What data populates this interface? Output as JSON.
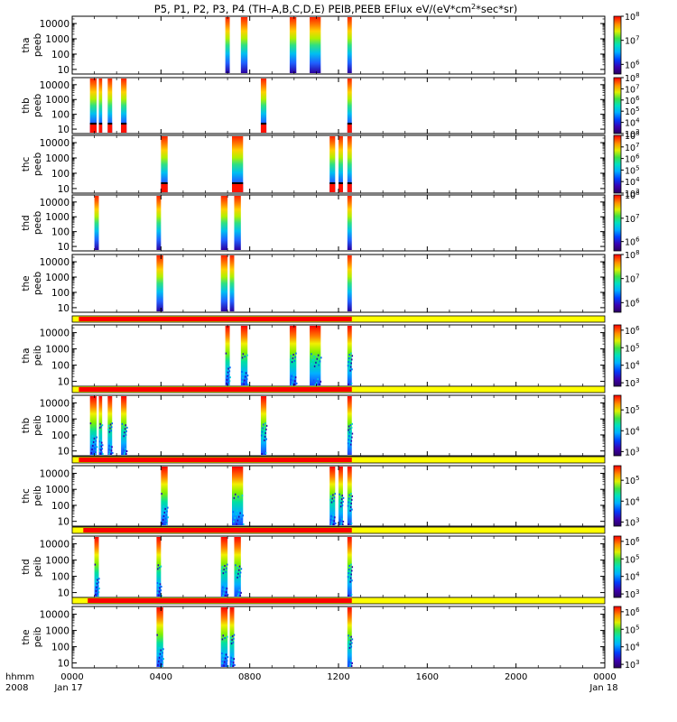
{
  "chart_data": {
    "type": "heatmap",
    "title": "P5, P1, P2, P3, P4 (TH–A,B,C,D,E) PEIB,PEEB EFlux eV/(eV*cm²*sec*sr)",
    "title_parts": {
      "prefix": "P5, P1, P2, P3, P4 (TH–A,B,C,D,E) PEIB,PEEB EFlux eV/(eV*cm",
      "sup": "2",
      "suffix": "*sec*sr)"
    },
    "x_axis": {
      "unit_label": "hhmm",
      "year_label": "2008",
      "ticks": [
        "0000",
        "0400",
        "0800",
        "1200",
        "1600",
        "2000",
        "0000"
      ],
      "tick_hours": [
        0,
        4,
        8,
        12,
        16,
        20,
        24
      ],
      "start_date": "Jan 17",
      "end_date": "Jan 18",
      "xlim_hours": [
        0,
        24
      ]
    },
    "y_axis": {
      "scale": "log",
      "ticks": [
        "10",
        "100",
        "1000",
        "10000"
      ],
      "tick_values": [
        10,
        100,
        1000,
        10000
      ],
      "ylim": [
        5,
        30000
      ]
    },
    "colormap": "rainbow (purple-blue-cyan-green-yellow-red)",
    "panels": [
      {
        "ylabel_top": "tha",
        "ylabel_bottom": "peeb",
        "cbar_ticks": [
          6,
          7,
          8
        ],
        "cbar_range": [
          5.6,
          8
        ],
        "intervals": [
          [
            6.9,
            7.1
          ],
          [
            7.6,
            7.9
          ],
          [
            9.8,
            10.1
          ],
          [
            10.7,
            11.2
          ],
          [
            12.4,
            12.6
          ]
        ],
        "bottom_red": false,
        "status_bar": null
      },
      {
        "ylabel_top": "thb",
        "ylabel_bottom": "peeb",
        "cbar_ticks": [
          3,
          4,
          5,
          6,
          7,
          8
        ],
        "cbar_range": [
          3,
          8
        ],
        "intervals": [
          [
            0.8,
            1.1
          ],
          [
            1.2,
            1.35
          ],
          [
            1.6,
            1.8
          ],
          [
            2.2,
            2.45
          ],
          [
            8.5,
            8.75
          ],
          [
            12.4,
            12.6
          ]
        ],
        "bottom_red": true,
        "status_bar": null
      },
      {
        "ylabel_top": "thc",
        "ylabel_bottom": "peeb",
        "cbar_ticks": [
          3,
          4,
          5,
          6,
          7,
          8
        ],
        "cbar_range": [
          3,
          8
        ],
        "intervals": [
          [
            4.0,
            4.3
          ],
          [
            7.2,
            7.7
          ],
          [
            11.6,
            11.85
          ],
          [
            12.0,
            12.2
          ],
          [
            12.4,
            12.6
          ]
        ],
        "bottom_red": true,
        "status_bar": null
      },
      {
        "ylabel_top": "thd",
        "ylabel_bottom": "peeb",
        "cbar_ticks": [
          6,
          7,
          8
        ],
        "cbar_range": [
          5.6,
          8
        ],
        "intervals": [
          [
            1.0,
            1.2
          ],
          [
            3.8,
            4.0
          ],
          [
            6.7,
            7.0
          ],
          [
            7.3,
            7.6
          ],
          [
            12.4,
            12.6
          ]
        ],
        "bottom_red": false,
        "status_bar": null
      },
      {
        "ylabel_top": "the",
        "ylabel_bottom": "peeb",
        "cbar_ticks": [
          6,
          7,
          8
        ],
        "cbar_range": [
          5.6,
          8
        ],
        "intervals": [
          [
            3.8,
            4.1
          ],
          [
            6.7,
            7.0
          ],
          [
            7.1,
            7.3
          ],
          [
            12.4,
            12.6
          ]
        ],
        "bottom_red": false,
        "status_bar": null
      },
      {
        "ylabel_top": "tha",
        "ylabel_bottom": "peib",
        "cbar_ticks": [
          3,
          4,
          5,
          6
        ],
        "cbar_range": [
          2.8,
          6.3
        ],
        "intervals": [
          [
            6.9,
            7.1
          ],
          [
            7.6,
            7.9
          ],
          [
            9.8,
            10.1
          ],
          [
            10.7,
            11.2
          ],
          [
            12.4,
            12.6
          ]
        ],
        "bottom_red": false,
        "status_bar": {
          "red_hours": [
            0.3,
            12.6
          ]
        }
      },
      {
        "ylabel_top": "thb",
        "ylabel_bottom": "peib",
        "cbar_ticks": [
          3,
          4,
          5
        ],
        "cbar_range": [
          2.8,
          5.7
        ],
        "intervals": [
          [
            0.8,
            1.1
          ],
          [
            1.2,
            1.35
          ],
          [
            1.6,
            1.8
          ],
          [
            2.2,
            2.45
          ],
          [
            8.5,
            8.75
          ],
          [
            12.4,
            12.6
          ]
        ],
        "bottom_red": false,
        "status_bar": {
          "red_hours": [
            0.3,
            12.6
          ]
        }
      },
      {
        "ylabel_top": "thc",
        "ylabel_bottom": "peib",
        "cbar_ticks": [
          3,
          4,
          5
        ],
        "cbar_range": [
          2.8,
          5.7
        ],
        "intervals": [
          [
            4.0,
            4.3
          ],
          [
            7.2,
            7.7
          ],
          [
            11.6,
            11.85
          ],
          [
            12.0,
            12.2
          ],
          [
            12.4,
            12.6
          ]
        ],
        "bottom_red": false,
        "status_bar": {
          "red_hours": [
            0.3,
            12.6
          ]
        }
      },
      {
        "ylabel_top": "thd",
        "ylabel_bottom": "peib",
        "cbar_ticks": [
          3,
          4,
          5,
          6
        ],
        "cbar_range": [
          2.8,
          6.3
        ],
        "intervals": [
          [
            1.0,
            1.2
          ],
          [
            3.8,
            4.0
          ],
          [
            6.7,
            7.0
          ],
          [
            7.3,
            7.6
          ],
          [
            12.4,
            12.6
          ]
        ],
        "bottom_red": false,
        "status_bar": {
          "red_hours": [
            0.5,
            12.6
          ]
        }
      },
      {
        "ylabel_top": "the",
        "ylabel_bottom": "peib",
        "cbar_ticks": [
          3,
          4,
          5,
          6
        ],
        "cbar_range": [
          2.8,
          6.3
        ],
        "intervals": [
          [
            3.8,
            4.1
          ],
          [
            6.7,
            7.0
          ],
          [
            7.1,
            7.3
          ],
          [
            12.4,
            12.6
          ]
        ],
        "bottom_red": false,
        "status_bar": {
          "red_hours": [
            0.7,
            12.6
          ]
        }
      }
    ],
    "status_bar_colors": {
      "red": "#ff0000",
      "yellow": "#ffff00"
    }
  }
}
